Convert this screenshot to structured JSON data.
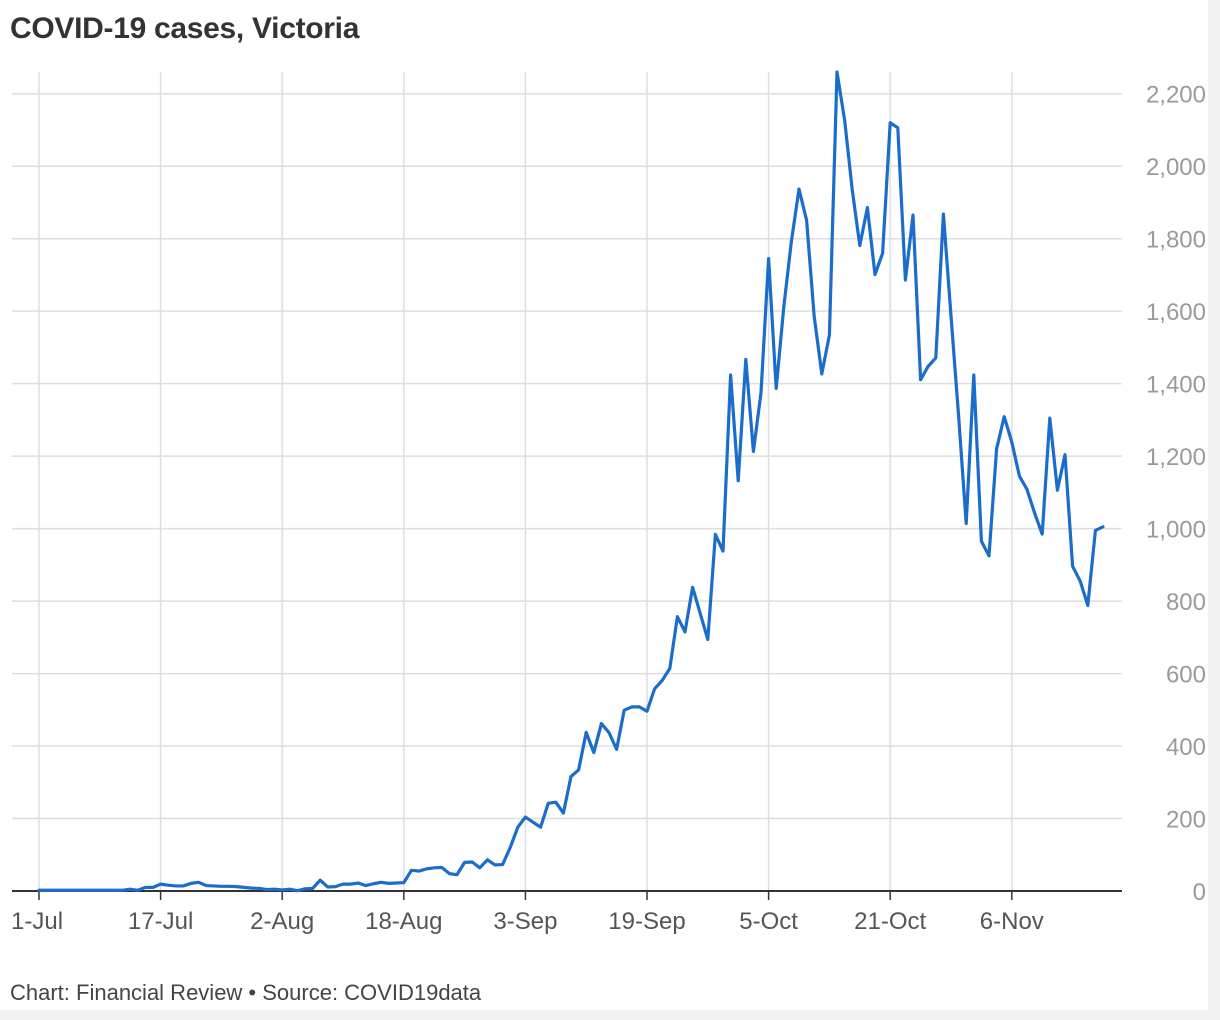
{
  "title": "COVID-19 cases, Victoria",
  "footer": "Chart: Financial Review • Source: COVID19data",
  "colors": {
    "line": "#1a6dca",
    "grid": "#dedede",
    "axis": "#333333",
    "tick_y": "#9a9a9a",
    "tick_x": "#555555"
  },
  "chart_data": {
    "type": "line",
    "title": "COVID-19 cases, Victoria",
    "xlabel": "",
    "ylabel": "",
    "x_start": "2021-07-01",
    "xticks": [
      "1-Jul",
      "17-Jul",
      "2-Aug",
      "18-Aug",
      "3-Sep",
      "19-Sep",
      "5-Oct",
      "21-Oct",
      "6-Nov"
    ],
    "xtick_index": [
      0,
      16,
      32,
      48,
      64,
      80,
      96,
      112,
      128
    ],
    "yticks": [
      0,
      200,
      400,
      600,
      800,
      1000,
      1200,
      1400,
      1600,
      1800,
      2000,
      2200
    ],
    "ytick_labels": [
      "0",
      "200",
      "400",
      "600",
      "800",
      "1,000",
      "1,200",
      "1,400",
      "1,600",
      "1,800",
      "2,000",
      "2,200"
    ],
    "ylim": [
      0,
      2260
    ],
    "y_axis_side": "right",
    "grid": true,
    "series": [
      {
        "values": [
          2,
          2,
          2,
          2,
          2,
          2,
          2,
          2,
          2,
          2,
          2,
          2,
          5,
          2,
          10,
          10,
          19,
          16,
          14,
          14,
          21,
          24,
          15,
          14,
          13,
          13,
          12,
          10,
          8,
          7,
          4,
          5,
          3,
          5,
          1,
          6,
          7,
          30,
          11,
          12,
          19,
          19,
          22,
          15,
          20,
          24,
          21,
          22,
          23,
          57,
          55,
          61,
          64,
          65,
          48,
          45,
          79,
          80,
          64,
          86,
          72,
          73,
          120,
          176,
          204,
          190,
          176,
          242,
          245,
          215,
          316,
          334,
          438,
          382,
          462,
          437,
          391,
          499,
          508,
          508,
          496,
          558,
          581,
          614,
          757,
          715,
          838,
          766,
          694,
          984,
          938,
          1424,
          1132,
          1467,
          1213,
          1375,
          1745,
          1387,
          1612,
          1793,
          1937,
          1851,
          1585,
          1427,
          1534,
          2260,
          2128,
          1936,
          1781,
          1886,
          1701,
          1760,
          2120,
          2106,
          1686,
          1865,
          1411,
          1448,
          1471,
          1868,
          1587,
          1311,
          1014,
          1424,
          965,
          925,
          1220,
          1309,
          1239,
          1145,
          1108,
          1043,
          985,
          1305,
          1106,
          1204,
          896,
          855,
          788,
          995,
          1005
        ]
      }
    ]
  }
}
